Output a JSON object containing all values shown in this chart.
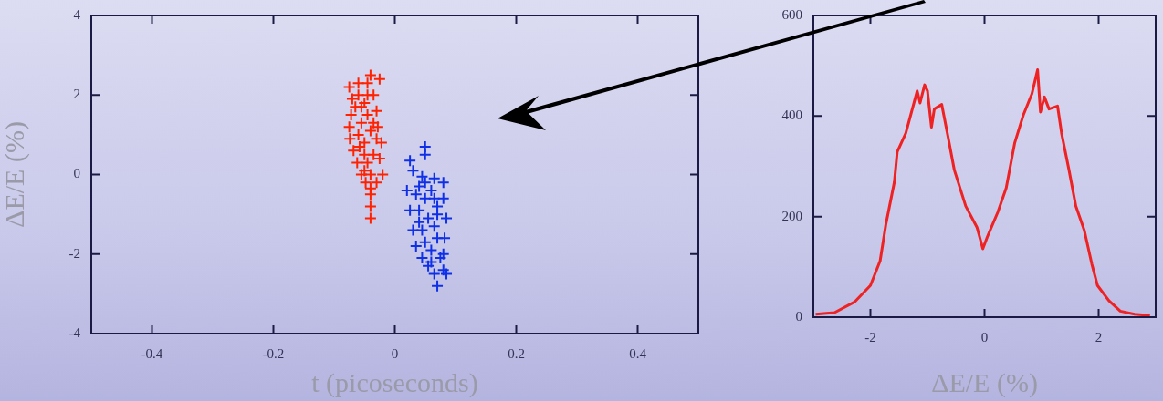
{
  "chart_data": [
    {
      "type": "scatter",
      "xlabel": "t (picoseconds)",
      "ylabel": "ΔE/E (%)",
      "xlim": [
        -0.5,
        0.5
      ],
      "xticks": [
        -0.4,
        -0.2,
        0,
        0.2,
        0.4
      ],
      "ylim": [
        -4,
        4
      ],
      "yticks": [
        -4,
        -2,
        0,
        2,
        4
      ],
      "marker": "cross",
      "series": [
        {
          "color": "#ff2200",
          "x": [
            -0.075,
            -0.07,
            -0.072,
            -0.075,
            -0.074,
            -0.068,
            -0.062,
            -0.055,
            -0.048,
            -0.04,
            -0.03,
            -0.02,
            -0.025,
            -0.022,
            -0.028,
            -0.03,
            -0.035,
            -0.045,
            -0.06,
            -0.04,
            -0.025,
            -0.04,
            -0.04,
            -0.04,
            -0.06,
            -0.05,
            -0.045,
            -0.055,
            -0.06,
            -0.05,
            -0.04,
            -0.035,
            -0.045,
            -0.05,
            -0.04,
            -0.055,
            -0.065,
            -0.035,
            -0.03,
            -0.058,
            -0.045,
            -0.05
          ],
          "values": [
            2.2,
            1.9,
            1.5,
            1.2,
            0.9,
            0.6,
            0.3,
            0.0,
            -0.2,
            -0.35,
            -0.2,
            0.0,
            0.4,
            0.8,
            1.2,
            1.6,
            2.0,
            2.3,
            2.3,
            2.5,
            2.4,
            -0.5,
            -0.8,
            -1.1,
            2.0,
            1.8,
            1.5,
            1.3,
            1.0,
            0.8,
            1.1,
            0.5,
            0.3,
            0.5,
            0.0,
            1.7,
            1.7,
            1.3,
            0.9,
            0.7,
            2.0,
            0.1
          ]
        },
        {
          "color": "#1030e8",
          "x": [
            0.025,
            0.05,
            0.05,
            0.03,
            0.02,
            0.025,
            0.03,
            0.035,
            0.045,
            0.055,
            0.065,
            0.07,
            0.08,
            0.085,
            0.08,
            0.082,
            0.085,
            0.08,
            0.08,
            0.065,
            0.045,
            0.04,
            0.05,
            0.06,
            0.07,
            0.04,
            0.055,
            0.065,
            0.045,
            0.05,
            0.06,
            0.07,
            0.075,
            0.06,
            0.035,
            0.07,
            0.05,
            0.04,
            0.065
          ],
          "values": [
            0.35,
            0.7,
            0.5,
            0.1,
            -0.4,
            -0.9,
            -1.4,
            -1.8,
            -2.1,
            -2.3,
            -2.5,
            -2.8,
            -2.4,
            -2.5,
            -2.0,
            -1.6,
            -1.1,
            -0.6,
            -0.2,
            -0.1,
            -0.05,
            -0.3,
            -0.6,
            -0.4,
            -0.8,
            -0.9,
            -1.1,
            -1.3,
            -1.4,
            -1.7,
            -1.9,
            -1.6,
            -2.1,
            -2.2,
            -0.5,
            -1.0,
            -0.2,
            -1.2,
            -0.6
          ]
        }
      ]
    },
    {
      "type": "line",
      "xlabel": "ΔE/E (%)",
      "xlim": [
        -3,
        3
      ],
      "xticks": [
        -2,
        0,
        2
      ],
      "ylim": [
        0,
        600
      ],
      "yticks": [
        0,
        200,
        400,
        600
      ],
      "color": "#ee2222",
      "x": [
        -2.96,
        -2.63,
        -2.28,
        -2.0,
        -1.83,
        -1.73,
        -1.58,
        -1.53,
        -1.38,
        -1.18,
        -1.13,
        -1.05,
        -1.0,
        -0.93,
        -0.88,
        -0.75,
        -0.63,
        -0.53,
        -0.33,
        -0.13,
        -0.03,
        0.05,
        0.23,
        0.38,
        0.53,
        0.68,
        0.83,
        0.93,
        0.98,
        1.05,
        1.13,
        1.28,
        1.35,
        1.48,
        1.6,
        1.75,
        1.88,
        1.98,
        2.18,
        2.38,
        2.63,
        2.9
      ],
      "values": [
        6,
        9,
        30,
        63,
        112,
        184,
        269,
        329,
        366,
        450,
        426,
        462,
        450,
        378,
        414,
        423,
        353,
        293,
        221,
        178,
        136,
        160,
        208,
        257,
        347,
        402,
        444,
        492,
        408,
        438,
        414,
        420,
        366,
        293,
        221,
        172,
        106,
        63,
        33,
        12,
        6,
        3
      ]
    }
  ]
}
